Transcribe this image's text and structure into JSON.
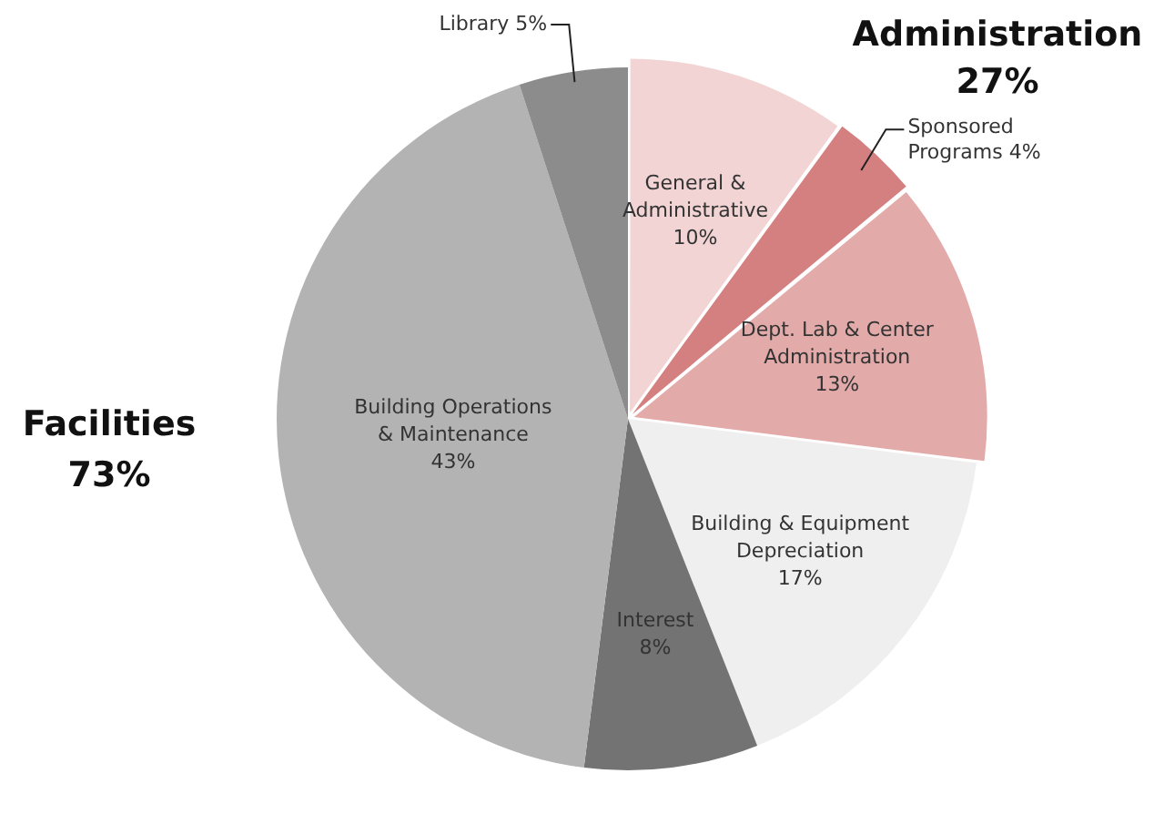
{
  "chart_data": {
    "type": "pie",
    "categories": [
      "General & Administrative",
      "Sponsored Programs",
      "Dept. Lab & Center Administration",
      "Building & Equipment Depreciation",
      "Interest",
      "Building Operations & Maintenance",
      "Library"
    ],
    "values": [
      10,
      4,
      13,
      17,
      8,
      43,
      5
    ],
    "colors": [
      "#f2d4d4",
      "#d48080",
      "#e3aaaa",
      "#efefef",
      "#737373",
      "#b3b3b3",
      "#8c8c8c"
    ],
    "value_labels": [
      "10%",
      "4%",
      "13%",
      "17%",
      "8%",
      "43%",
      "5%"
    ],
    "legend": false,
    "annotations": [
      "Administration",
      "27%",
      "Facilities",
      "73%"
    ]
  }
}
